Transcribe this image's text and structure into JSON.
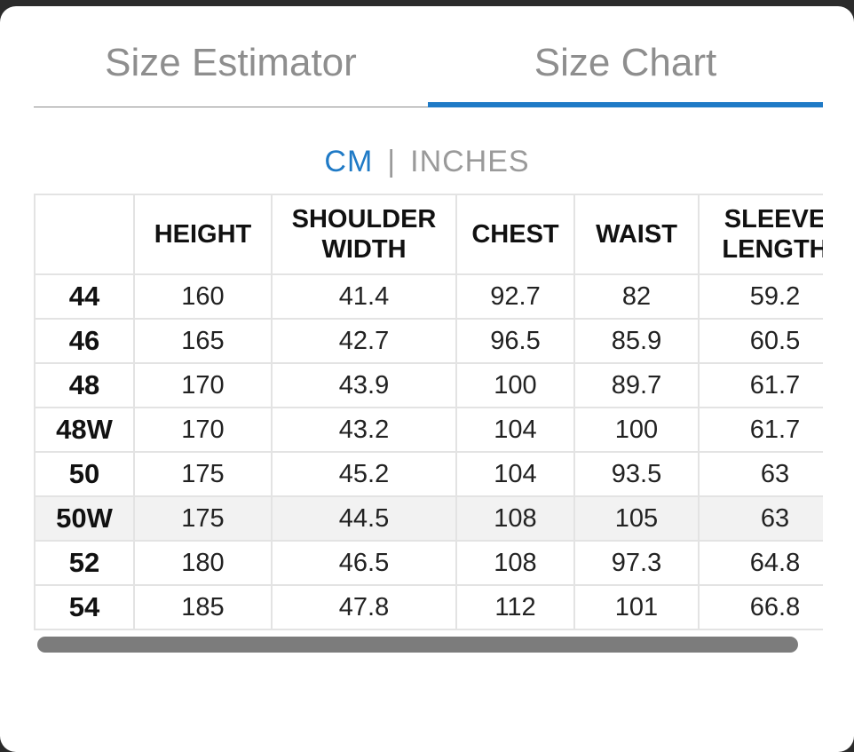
{
  "tabs": {
    "estimator": "Size Estimator",
    "chart": "Size Chart"
  },
  "units": {
    "cm": "CM",
    "separator": "|",
    "inches": "INCHES"
  },
  "table": {
    "headers": [
      "",
      "HEIGHT",
      "SHOULDER WIDTH",
      "CHEST",
      "WAIST",
      "SLEEVE LENGTH"
    ],
    "rows": [
      [
        "44",
        "160",
        "41.4",
        "92.7",
        "82",
        "59.2"
      ],
      [
        "46",
        "165",
        "42.7",
        "96.5",
        "85.9",
        "60.5"
      ],
      [
        "48",
        "170",
        "43.9",
        "100",
        "89.7",
        "61.7"
      ],
      [
        "48W",
        "170",
        "43.2",
        "104",
        "100",
        "61.7"
      ],
      [
        "50",
        "175",
        "45.2",
        "104",
        "93.5",
        "63"
      ],
      [
        "50W",
        "175",
        "44.5",
        "108",
        "105",
        "63"
      ],
      [
        "52",
        "180",
        "46.5",
        "108",
        "97.3",
        "64.8"
      ],
      [
        "54",
        "185",
        "47.8",
        "112",
        "101",
        "66.8"
      ]
    ]
  },
  "colors": {
    "accent": "#1f7ac6",
    "highlight_row": "#f2f2f2"
  }
}
